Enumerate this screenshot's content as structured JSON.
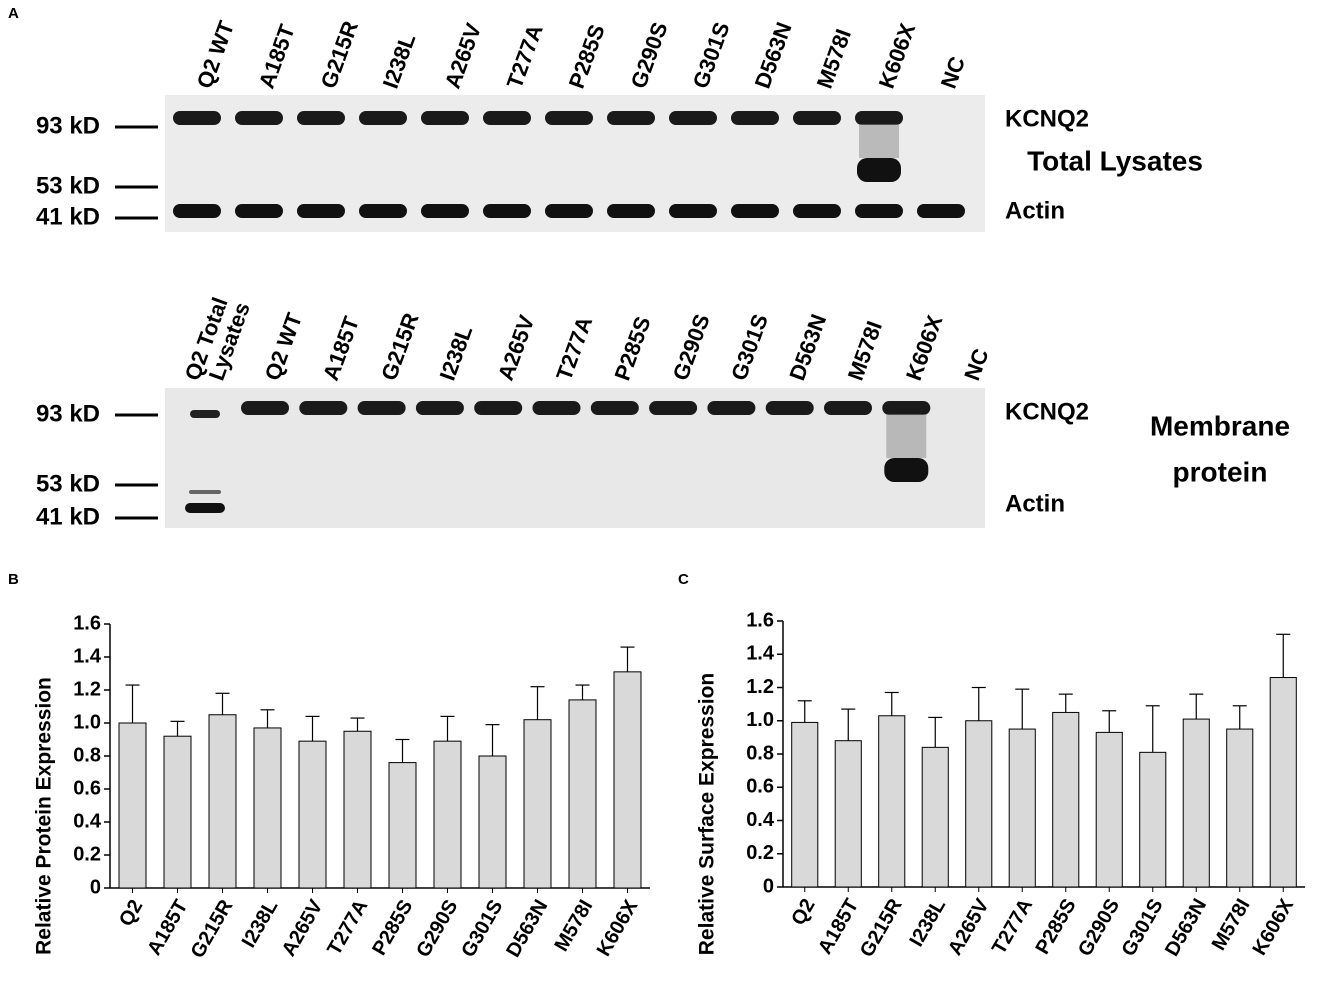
{
  "panel_labels": [
    "A",
    "B",
    "C"
  ],
  "blots": [
    {
      "title": "Total Lysates",
      "lanes": [
        "Q2 WT",
        "A185T",
        "G215R",
        "I238L",
        "A265V",
        "T277A",
        "P285S",
        "G290S",
        "G301S",
        "D563N",
        "M578I",
        "K606X",
        "NC"
      ],
      "markers": [
        "93 kD",
        "53 kD",
        "41 kD"
      ],
      "bands": [
        "KCNQ2",
        "Actin"
      ]
    },
    {
      "title_lines": [
        "Membrane",
        "protein"
      ],
      "total_lane": [
        "Q2 Total",
        "Lysates"
      ],
      "lanes": [
        "Q2 WT",
        "A185T",
        "G215R",
        "I238L",
        "A265V",
        "T277A",
        "P285S",
        "G290S",
        "G301S",
        "D563N",
        "M578I",
        "K606X",
        "NC"
      ],
      "markers": [
        "93 kD",
        "53 kD",
        "41 kD"
      ],
      "bands": [
        "KCNQ2",
        "Actin"
      ]
    }
  ],
  "chart_data": [
    {
      "type": "bar",
      "y_label": "Relative Protein Expression",
      "categories": [
        "Q2",
        "A185T",
        "G215R",
        "I238L",
        "A265V",
        "T277A",
        "P285S",
        "G290S",
        "G301S",
        "D563N",
        "M578I",
        "K606X"
      ],
      "values": [
        1.0,
        0.92,
        1.05,
        0.97,
        0.89,
        0.95,
        0.76,
        0.89,
        0.8,
        1.02,
        1.14,
        1.31
      ],
      "errors": [
        0.23,
        0.09,
        0.13,
        0.11,
        0.15,
        0.08,
        0.14,
        0.15,
        0.19,
        0.2,
        0.09,
        0.15
      ],
      "color": "#d9d9d9",
      "ylim": [
        0,
        1.6
      ],
      "yticks": [
        0,
        0.2,
        0.4,
        0.6,
        0.8,
        {
          "value": 1,
          "label": "1.0"
        },
        1.2,
        1.4,
        1.6
      ]
    },
    {
      "type": "bar",
      "y_label": "Relative Surface Expression",
      "categories": [
        "Q2",
        "A185T",
        "G215R",
        "I238L",
        "A265V",
        "T277A",
        "P285S",
        "G290S",
        "G301S",
        "D563N",
        "M578I",
        "K606X"
      ],
      "values": [
        0.99,
        0.88,
        1.03,
        0.84,
        1.0,
        0.95,
        1.05,
        0.93,
        0.81,
        1.01,
        0.95,
        1.26
      ],
      "errors": [
        0.13,
        0.19,
        0.14,
        0.18,
        0.2,
        0.24,
        0.11,
        0.13,
        0.28,
        0.15,
        0.14,
        0.26
      ],
      "color": "#d9d9d9",
      "ylim": [
        0,
        1.6
      ],
      "yticks": [
        0,
        0.2,
        0.4,
        0.6,
        0.8,
        {
          "value": 1,
          "label": "1.0"
        },
        1.2,
        1.4,
        1.6
      ]
    }
  ]
}
